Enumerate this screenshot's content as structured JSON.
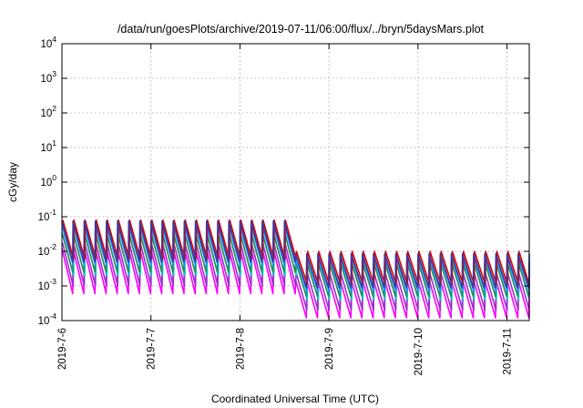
{
  "chart_data": {
    "type": "line",
    "title": "/data/run/goesPlots/archive/2019-07-11/06:00/flux/../bryn/5daysMars.plot",
    "xlabel": "Coordinated Universal Time (UTC)",
    "ylabel": "cGy/day",
    "y_scale": "log",
    "ylim": [
      0.0001,
      10000
    ],
    "y_ticks": [
      {
        "base": "10",
        "exp": "-4",
        "value": 0.0001
      },
      {
        "base": "10",
        "exp": "-3",
        "value": 0.001
      },
      {
        "base": "10",
        "exp": "-2",
        "value": 0.01
      },
      {
        "base": "10",
        "exp": "-1",
        "value": 0.1
      },
      {
        "base": "10",
        "exp": "0",
        "value": 1
      },
      {
        "base": "10",
        "exp": "1",
        "value": 10
      },
      {
        "base": "10",
        "exp": "2",
        "value": 100
      },
      {
        "base": "10",
        "exp": "3",
        "value": 1000
      },
      {
        "base": "10",
        "exp": "4",
        "value": 10000
      }
    ],
    "xlim": [
      "2019-07-06T00:00",
      "2019-07-11T06:00"
    ],
    "x_ticks": [
      {
        "label": "2019-7-6",
        "value": "2019-07-06T00:00"
      },
      {
        "label": "2019-7-7",
        "value": "2019-07-07T00:00"
      },
      {
        "label": "2019-7-8",
        "value": "2019-07-08T00:00"
      },
      {
        "label": "2019-7-9",
        "value": "2019-07-09T00:00"
      },
      {
        "label": "2019-7-10",
        "value": "2019-07-10T00:00"
      },
      {
        "label": "2019-7-11",
        "value": "2019-07-11T00:00"
      }
    ],
    "grid": true,
    "sawtooth_period_hours": 3,
    "series": [
      {
        "color": "#ff00ff",
        "peak_before": 0.012,
        "trough_before": 0.0006,
        "peak_after": 0.0015,
        "trough_after": 0.00012
      },
      {
        "color": "#9932cc",
        "peak_before": 0.018,
        "trough_before": 0.001,
        "peak_after": 0.0025,
        "trough_after": 0.0002
      },
      {
        "color": "#00ced1",
        "peak_before": 0.03,
        "trough_before": 0.002,
        "peak_after": 0.0045,
        "trough_after": 0.0004
      },
      {
        "color": "#2e8b57",
        "peak_before": 0.035,
        "trough_before": 0.0025,
        "peak_after": 0.005,
        "trough_after": 0.0005
      },
      {
        "color": "#1e90ff",
        "peak_before": 0.05,
        "trough_before": 0.004,
        "peak_after": 0.0065,
        "trough_after": 0.0007
      },
      {
        "color": "#dd0000",
        "peak_before": 0.08,
        "trough_before": 0.006,
        "peak_after": 0.01,
        "trough_after": 0.0011
      },
      {
        "color": "#3a3aa6",
        "peak_before": 0.075,
        "trough_before": 0.005,
        "peak_after": 0.0085,
        "trough_after": 0.0009
      }
    ],
    "drop_time": "2019-07-08T15:00"
  }
}
